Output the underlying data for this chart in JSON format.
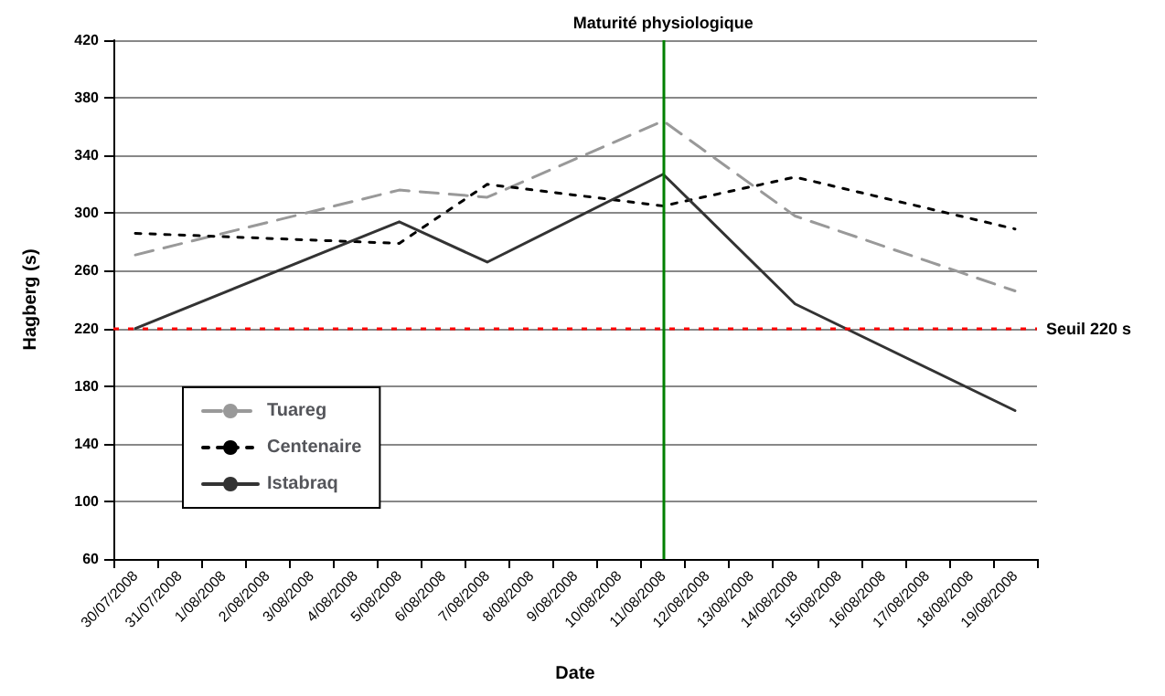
{
  "chart_data": {
    "type": "line",
    "xlabel": "Date",
    "ylabel": "Hagberg (s)",
    "categories": [
      "30/07/2008",
      "31/07/2008",
      "1/08/2008",
      "2/08/2008",
      "3/08/2008",
      "4/08/2008",
      "5/08/2008",
      "6/08/2008",
      "7/08/2008",
      "8/08/2008",
      "9/08/2008",
      "10/08/2008",
      "11/08/2008",
      "12/08/2008",
      "13/08/2008",
      "14/08/2008",
      "15/08/2008",
      "16/08/2008",
      "17/08/2008",
      "18/08/2008",
      "19/08/2008"
    ],
    "series": [
      {
        "name": "Tuareg",
        "color": "#999999",
        "line_style": "dashed",
        "values": [
          271,
          null,
          null,
          null,
          null,
          null,
          316,
          null,
          311,
          null,
          null,
          null,
          364,
          null,
          null,
          298,
          null,
          null,
          null,
          null,
          246
        ]
      },
      {
        "name": "Centenaire",
        "color": "#000000",
        "line_style": "dotted",
        "values": [
          286,
          null,
          null,
          null,
          null,
          null,
          279,
          null,
          320,
          null,
          null,
          null,
          305,
          null,
          null,
          325,
          null,
          null,
          null,
          null,
          289
        ]
      },
      {
        "name": "Istabraq",
        "color": "#333333",
        "line_style": "solid",
        "values": [
          220,
          null,
          null,
          null,
          null,
          null,
          294,
          null,
          266,
          null,
          null,
          null,
          327,
          null,
          null,
          237,
          null,
          null,
          null,
          null,
          163
        ]
      }
    ],
    "ylim": [
      60,
      420
    ],
    "yticks": [
      60,
      100,
      140,
      180,
      220,
      260,
      300,
      340,
      380,
      420
    ],
    "ref_lines": [
      {
        "axis": "y",
        "value": 220,
        "label": "Seuil 220 s",
        "color": "#ff0000",
        "line_style": "dotted"
      },
      {
        "axis": "x",
        "value": "11/08/2008",
        "label": "Maturité physiologique",
        "color": "#008000",
        "line_style": "solid"
      }
    ],
    "grid": "y",
    "legend": "bottom left",
    "marker": "none"
  }
}
